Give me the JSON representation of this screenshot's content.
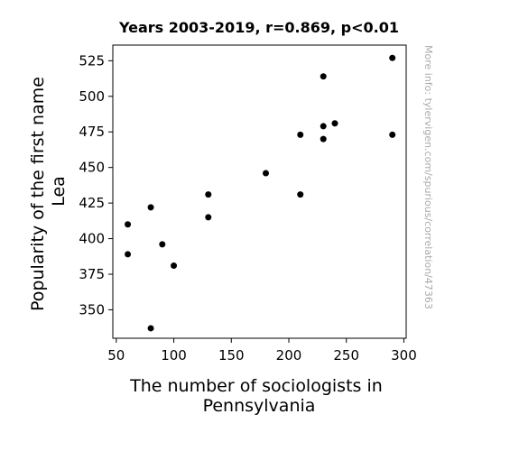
{
  "chart_data": {
    "type": "scatter",
    "title": "Years 2003-2019, r=0.869, p<0.01",
    "xlabel": [
      "The number of sociologists in",
      "Pennsylvania"
    ],
    "ylabel": [
      "Popularity of the first name",
      "Lea"
    ],
    "xlim": [
      47,
      302
    ],
    "ylim": [
      330,
      536
    ],
    "xticks": [
      50,
      100,
      150,
      200,
      250,
      300
    ],
    "yticks": [
      350,
      375,
      400,
      425,
      450,
      475,
      500,
      525
    ],
    "grid": false,
    "marker_color": "#000000",
    "points": [
      {
        "x": 60,
        "y": 389
      },
      {
        "x": 60,
        "y": 410
      },
      {
        "x": 80,
        "y": 337
      },
      {
        "x": 80,
        "y": 422
      },
      {
        "x": 90,
        "y": 396
      },
      {
        "x": 100,
        "y": 381
      },
      {
        "x": 130,
        "y": 431
      },
      {
        "x": 130,
        "y": 415
      },
      {
        "x": 180,
        "y": 446
      },
      {
        "x": 210,
        "y": 473
      },
      {
        "x": 210,
        "y": 431
      },
      {
        "x": 230,
        "y": 514
      },
      {
        "x": 230,
        "y": 479
      },
      {
        "x": 230,
        "y": 470
      },
      {
        "x": 240,
        "y": 481
      },
      {
        "x": 290,
        "y": 527
      },
      {
        "x": 290,
        "y": 473
      }
    ]
  },
  "watermark": "More info: tylervigen.com/spurious/correlation/47363"
}
